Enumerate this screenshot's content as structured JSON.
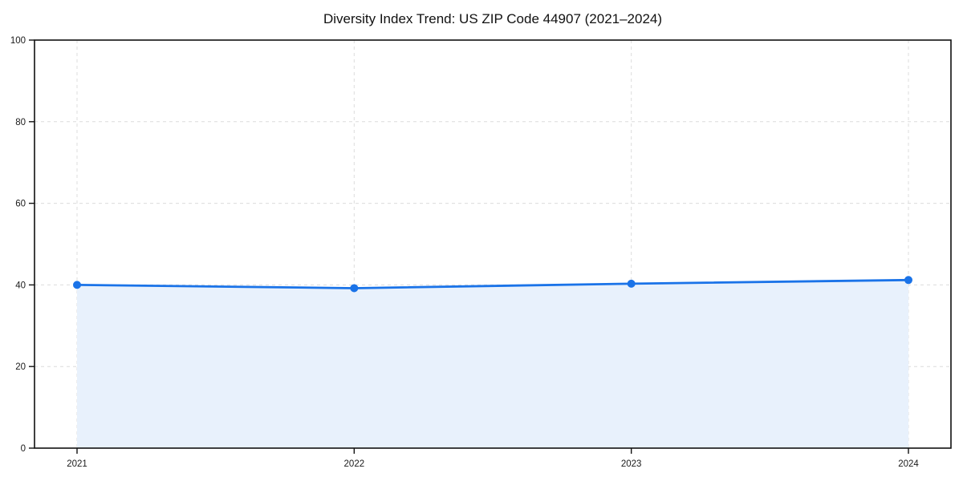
{
  "chart_data": {
    "type": "area",
    "title": "Diversity Index Trend: US ZIP Code 44907 (2021–2024)",
    "categories": [
      "2021",
      "2022",
      "2023",
      "2024"
    ],
    "series": [
      {
        "name": "Diversity Index",
        "values": [
          40.0,
          39.2,
          40.3,
          41.2
        ]
      }
    ],
    "xlabel": "",
    "ylabel": "",
    "ylim": [
      0,
      100
    ],
    "yticks": [
      0,
      20,
      40,
      60,
      80,
      100
    ],
    "grid": true,
    "grid_style": "dashed",
    "legend": false,
    "colors": {
      "line": "#1a73e8",
      "marker": "#1a73e8",
      "fill": "#e8f1fc",
      "gridline": "#dcdcdc",
      "spine": "#111111",
      "tick_text": "#1a1a1a",
      "title_text": "#111111",
      "background": "#ffffff"
    }
  }
}
